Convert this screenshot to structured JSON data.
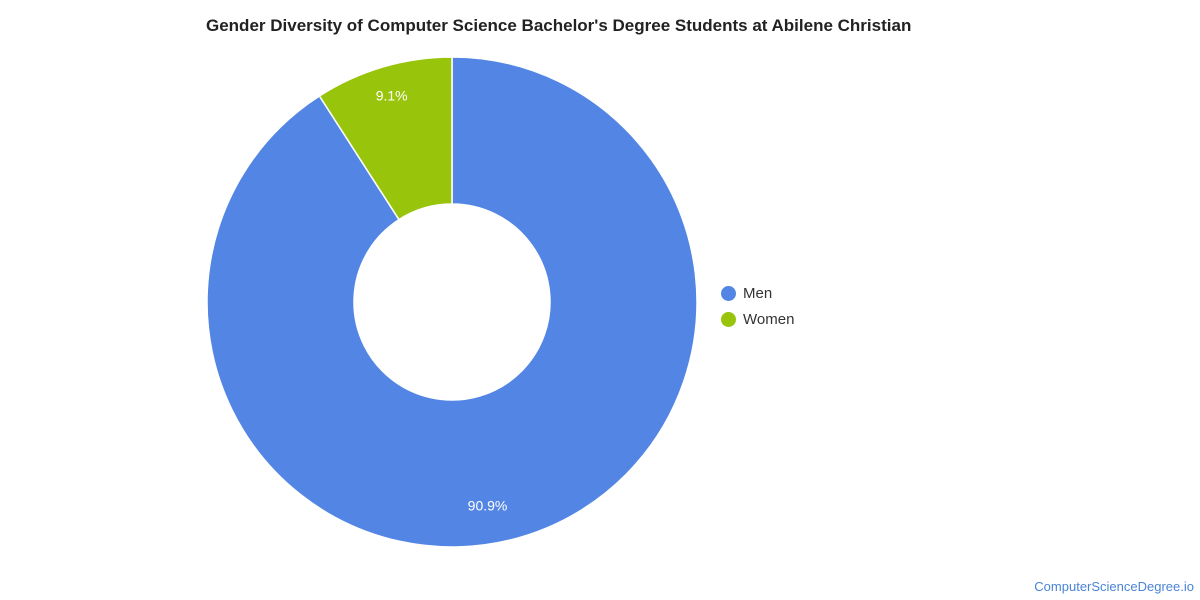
{
  "chart_data": {
    "type": "pie",
    "title": "Gender Diversity of Computer Science Bachelor's Degree Students at Abilene Christian",
    "donut": true,
    "categories": [
      "Men",
      "Women"
    ],
    "values": [
      90.9,
      9.1
    ],
    "data_labels": [
      "90.9%",
      "9.1%"
    ],
    "colors": [
      "#5386e4",
      "#98c50c"
    ],
    "legend": {
      "placement": "right",
      "items": [
        {
          "label": "Men",
          "color": "#5386e4"
        },
        {
          "label": "Women",
          "color": "#98c50c"
        }
      ]
    }
  },
  "credit": "ComputerScienceDegree.io"
}
